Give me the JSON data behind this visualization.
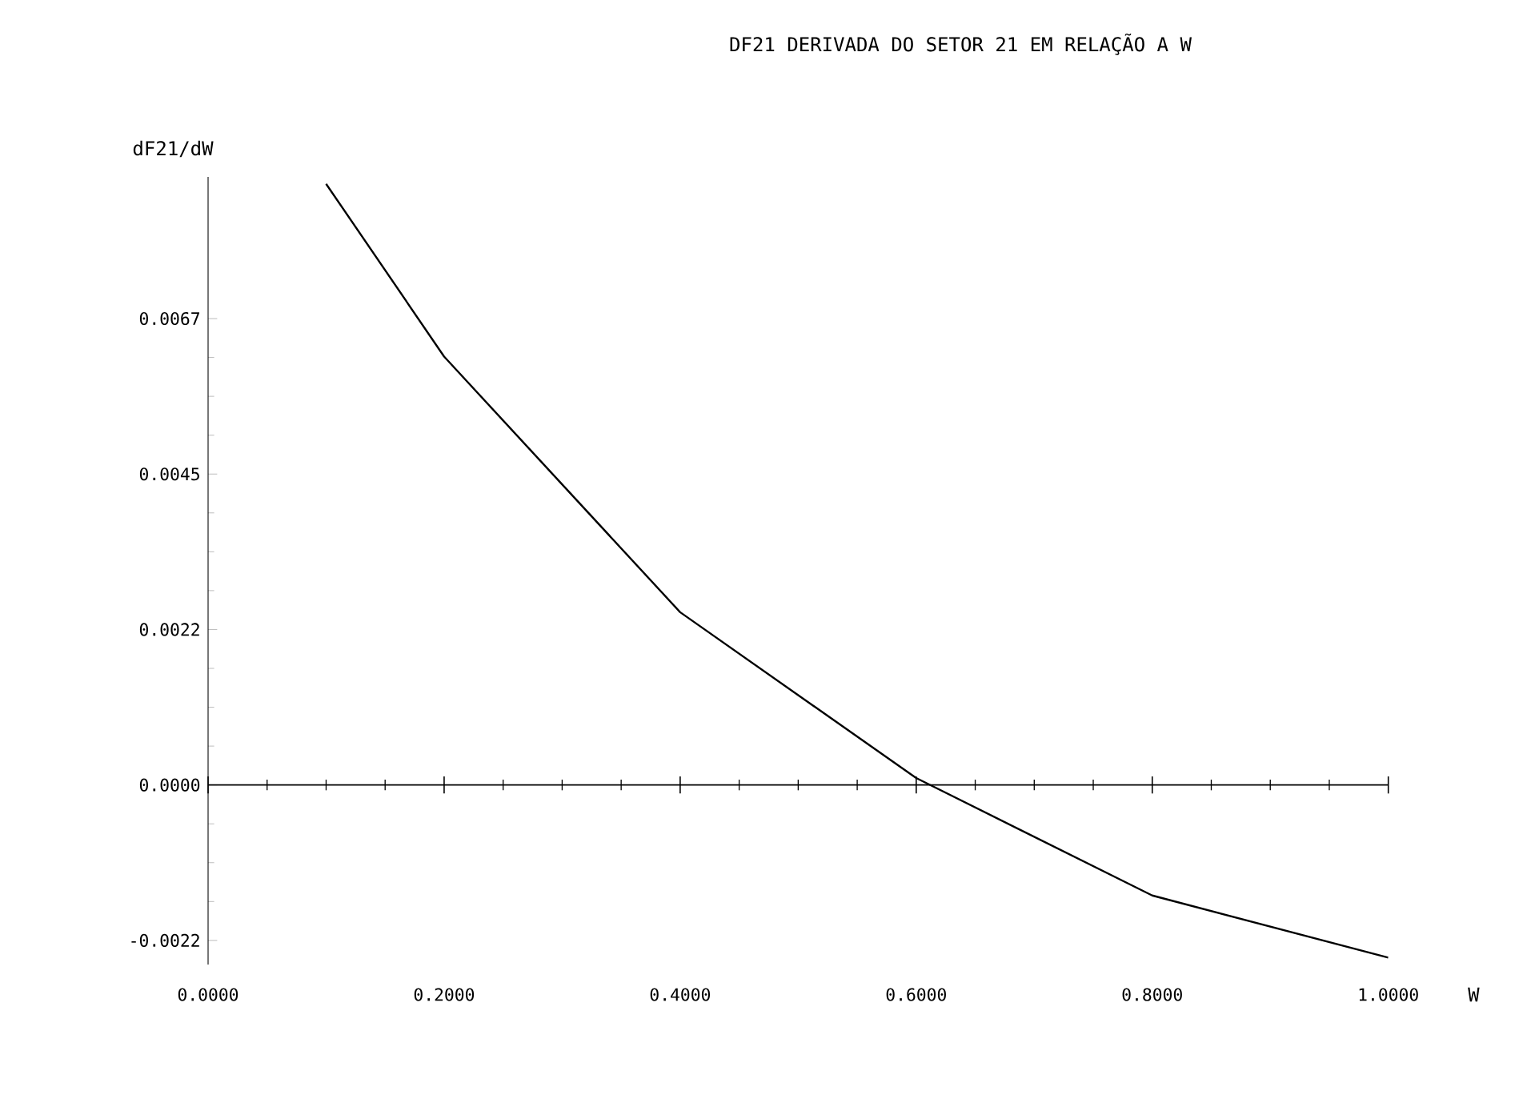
{
  "chart_data": {
    "type": "line",
    "title": "DF21 DERIVADA DO SETOR 21 EM RELAÇÃO A W",
    "ylabel": "dF21/dW",
    "xlabel": "W",
    "x": [
      0.1,
      0.2,
      0.4,
      0.6,
      0.8,
      1.0
    ],
    "series": [
      {
        "color": "#000000",
        "values": [
          0.0087,
          0.0062,
          0.0025,
          0.0001,
          -0.0016,
          -0.0025
        ]
      }
    ],
    "xlim": [
      0,
      1.0
    ],
    "xticks": [
      {
        "value": 0,
        "label": "0.0000"
      },
      {
        "value": 0.2,
        "label": "0.2000"
      },
      {
        "value": 0.4,
        "label": "0.4000"
      },
      {
        "value": 0.6,
        "label": "0.6000"
      },
      {
        "value": 0.8,
        "label": "0.8000"
      },
      {
        "value": 1.0,
        "label": "1.0000"
      }
    ],
    "ylim": [
      -0.0026,
      0.0088
    ],
    "yticks": [
      {
        "value": -0.00225,
        "label": "-0.0022"
      },
      {
        "value": 0,
        "label": "0.0000"
      },
      {
        "value": 0.00225,
        "label": "0.0022"
      },
      {
        "value": 0.0045,
        "label": "0.0045"
      },
      {
        "value": 0.00675,
        "label": "0.0067"
      }
    ],
    "marker": "none",
    "line_style": "solid"
  }
}
